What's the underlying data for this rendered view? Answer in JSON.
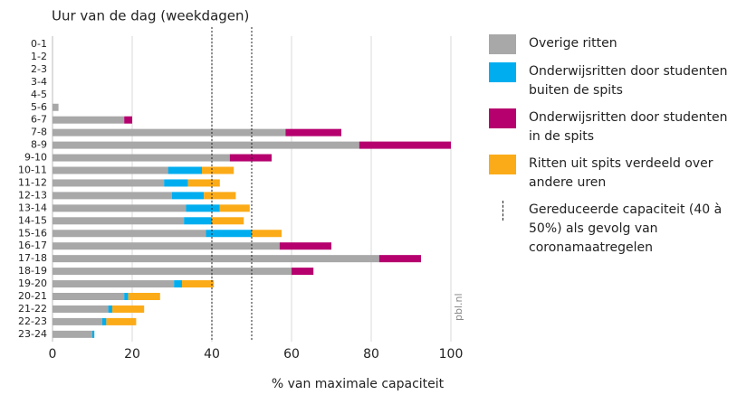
{
  "chart_data": {
    "type": "stacked-bar-horizontal",
    "title": "Uur van de dag (weekdagen)",
    "x_label": "% van maximale capaciteit",
    "annotation": "pbl.nl",
    "categories": [
      "0-1",
      "1-2",
      "2-3",
      "3-4",
      "4-5",
      "5-6",
      "6-7",
      "7-8",
      "8-9",
      "9-10",
      "10-11",
      "11-12",
      "12-13",
      "13-14",
      "14-15",
      "15-16",
      "16-17",
      "17-18",
      "18-19",
      "19-20",
      "20-21",
      "21-22",
      "22-23",
      "23-24"
    ],
    "series": [
      {
        "name": "Overige ritten",
        "color": "#a8a8a9",
        "values": [
          0,
          0,
          0,
          0,
          0,
          1.5,
          18,
          58.5,
          77,
          44.5,
          29,
          28,
          30,
          33.5,
          33,
          38.5,
          57,
          82,
          60,
          30.5,
          18,
          14,
          12.5,
          10
        ]
      },
      {
        "name": "Onderwijsritten door studenten buiten de spits",
        "color": "#00aeef",
        "values": [
          0,
          0,
          0,
          0,
          0,
          0,
          0,
          0,
          0,
          0,
          8.5,
          6,
          8,
          8.5,
          7,
          11.5,
          0,
          0,
          0,
          2,
          1,
          1,
          1,
          0.5
        ]
      },
      {
        "name": "Onderwijsritten door studenten in de spits",
        "color": "#b5006e",
        "values": [
          0,
          0,
          0,
          0,
          0,
          0,
          2,
          14,
          23,
          10.5,
          0,
          0,
          0,
          0,
          0,
          0,
          13,
          10.5,
          5.5,
          0,
          0,
          0,
          0,
          0
        ]
      },
      {
        "name": "Ritten uit spits verdeeld over andere uren",
        "color": "#fbab18",
        "values": [
          0,
          0,
          0,
          0,
          0,
          0,
          0,
          0,
          0,
          0,
          8,
          8,
          8,
          7.5,
          8,
          7.5,
          0,
          0,
          0,
          8,
          8,
          8,
          7.5,
          0
        ]
      }
    ],
    "reference_lines": [
      40,
      50
    ],
    "reference_label": "Gereduceerde capaciteit (40 à 50%) als gevolg van coronamaatregelen",
    "xlim": [
      0,
      100
    ],
    "xticks": [
      0,
      20,
      40,
      60,
      80,
      100
    ],
    "grid": true
  }
}
